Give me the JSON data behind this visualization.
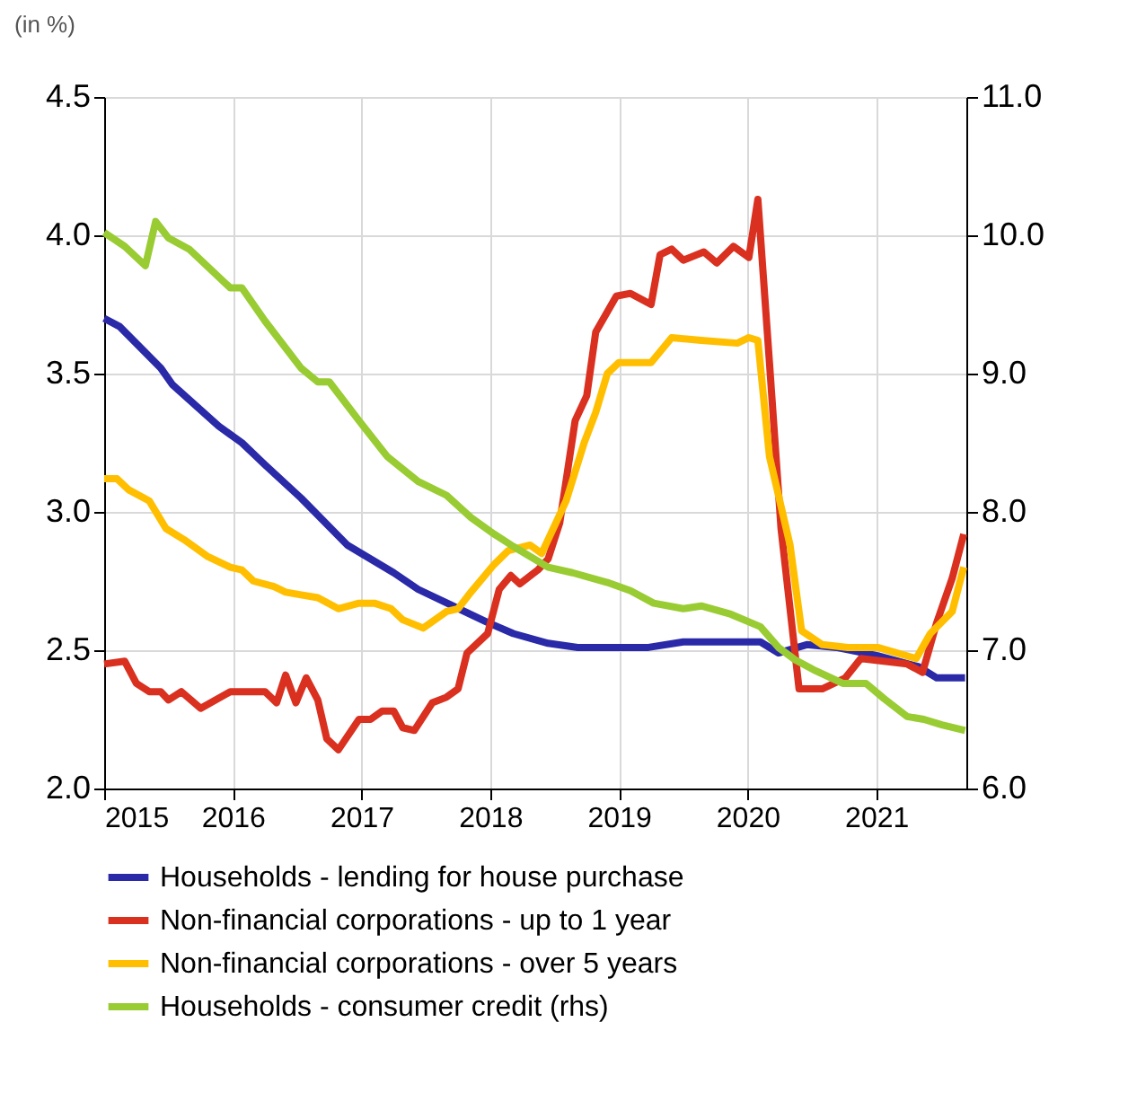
{
  "chart_data": {
    "type": "line",
    "title": "(in %)",
    "xlim": [
      2015,
      2021.7
    ],
    "xticks": [
      2015,
      2016,
      2017,
      2018,
      2019,
      2020,
      2021
    ],
    "ylim": [
      2.0,
      4.5
    ],
    "yticks": [
      {
        "value": 2.0,
        "label": "2.0"
      },
      {
        "value": 2.5,
        "label": "2.5"
      },
      {
        "value": 3.0,
        "label": "3.0"
      },
      {
        "value": 3.5,
        "label": "3.5"
      },
      {
        "value": 4.0,
        "label": "4.0"
      },
      {
        "value": 4.5,
        "label": "4.5"
      }
    ],
    "y2lim": [
      6.0,
      11.0
    ],
    "y2ticks": [
      {
        "value": 6.0,
        "label": "6.0"
      },
      {
        "value": 7.0,
        "label": "7.0"
      },
      {
        "value": 8.0,
        "label": "8.0"
      },
      {
        "value": 9.0,
        "label": "9.0"
      },
      {
        "value": 10.0,
        "label": "10.0"
      },
      {
        "value": 11.0,
        "label": "11.0"
      }
    ],
    "grid": true,
    "legend": "bottom",
    "line_style": "solid",
    "marker": "none",
    "series": [
      {
        "name": "Households - lending for house purchase",
        "color": "#2a2aa8",
        "x": [
          2015,
          2015.12,
          2015.44,
          2015.53,
          2015.89,
          2016.07,
          2016.25,
          2016.53,
          2016.89,
          2017.25,
          2017.44,
          2017.71,
          2017.98,
          2018.18,
          2018.45,
          2018.68,
          2019.23,
          2019.5,
          2020.1,
          2020.24,
          2020.46,
          2020.69,
          2021.01,
          2021.33,
          2021.47,
          2021.69
        ],
        "values": [
          3.7,
          3.67,
          3.52,
          3.46,
          3.31,
          3.25,
          3.17,
          3.05,
          2.88,
          2.78,
          2.72,
          2.66,
          2.6,
          2.56,
          2.525,
          2.51,
          2.51,
          2.53,
          2.53,
          2.49,
          2.52,
          2.51,
          2.48,
          2.44,
          2.4,
          2.4
        ]
      },
      {
        "name": "Non-financial corporations - up to 1 year",
        "color": "#d93020",
        "x": [
          2015,
          2015.16,
          2015.25,
          2015.35,
          2015.44,
          2015.5,
          2015.6,
          2015.75,
          2015.98,
          2016.25,
          2016.34,
          2016.41,
          2016.49,
          2016.57,
          2016.66,
          2016.73,
          2016.82,
          2016.98,
          2017.07,
          2017.16,
          2017.25,
          2017.32,
          2017.41,
          2017.55,
          2017.66,
          2017.75,
          2017.82,
          2017.98,
          2018.07,
          2018.16,
          2018.23,
          2018.37,
          2018.45,
          2018.54,
          2018.66,
          2018.75,
          2018.82,
          2018.98,
          2019.09,
          2019.25,
          2019.32,
          2019.41,
          2019.5,
          2019.66,
          2019.76,
          2019.89,
          2020.01,
          2020.08,
          2020.17,
          2020.26,
          2020.4,
          2020.58,
          2020.76,
          2020.88,
          2021.06,
          2021.24,
          2021.36,
          2021.47,
          2021.59,
          2021.68
        ],
        "values": [
          2.45,
          2.46,
          2.38,
          2.35,
          2.35,
          2.32,
          2.35,
          2.29,
          2.35,
          2.35,
          2.31,
          2.41,
          2.31,
          2.4,
          2.32,
          2.18,
          2.14,
          2.25,
          2.25,
          2.28,
          2.28,
          2.22,
          2.21,
          2.31,
          2.33,
          2.36,
          2.49,
          2.56,
          2.72,
          2.77,
          2.74,
          2.79,
          2.83,
          2.96,
          3.33,
          3.42,
          3.65,
          3.78,
          3.79,
          3.75,
          3.93,
          3.95,
          3.91,
          3.94,
          3.9,
          3.96,
          3.92,
          4.13,
          3.54,
          2.94,
          2.36,
          2.36,
          2.4,
          2.47,
          2.46,
          2.45,
          2.42,
          2.6,
          2.76,
          2.92
        ]
      },
      {
        "name": "Non-financial corporations - over 5 years",
        "color": "#ffbf00",
        "x": [
          2015,
          2015.1,
          2015.19,
          2015.35,
          2015.48,
          2015.62,
          2015.8,
          2015.98,
          2016.07,
          2016.16,
          2016.32,
          2016.41,
          2016.53,
          2016.66,
          2016.82,
          2016.98,
          2017.1,
          2017.23,
          2017.32,
          2017.48,
          2017.66,
          2017.75,
          2017.85,
          2018.03,
          2018.14,
          2018.31,
          2018.4,
          2018.59,
          2018.73,
          2018.82,
          2018.91,
          2019.0,
          2019.25,
          2019.41,
          2019.64,
          2019.92,
          2020.01,
          2020.08,
          2020.17,
          2020.33,
          2020.42,
          2020.58,
          2020.78,
          2021.01,
          2021.31,
          2021.42,
          2021.59,
          2021.68
        ],
        "values": [
          3.12,
          3.12,
          3.08,
          3.04,
          2.94,
          2.9,
          2.84,
          2.8,
          2.79,
          2.75,
          2.73,
          2.71,
          2.7,
          2.69,
          2.65,
          2.67,
          2.67,
          2.65,
          2.61,
          2.58,
          2.64,
          2.65,
          2.71,
          2.81,
          2.86,
          2.88,
          2.85,
          3.04,
          3.25,
          3.36,
          3.5,
          3.54,
          3.54,
          3.63,
          3.62,
          3.61,
          3.63,
          3.62,
          3.2,
          2.88,
          2.57,
          2.52,
          2.51,
          2.51,
          2.47,
          2.56,
          2.64,
          2.8
        ]
      },
      {
        "name": "Households - consumer credit (rhs)",
        "color": "#99cc33",
        "axis": "y2",
        "x": [
          2015,
          2015.16,
          2015.32,
          2015.4,
          2015.5,
          2015.66,
          2015.98,
          2016.07,
          2016.25,
          2016.53,
          2016.66,
          2016.75,
          2016.98,
          2017.2,
          2017.44,
          2017.66,
          2017.85,
          2018.03,
          2018.18,
          2018.45,
          2018.64,
          2018.91,
          2019.09,
          2019.27,
          2019.5,
          2019.64,
          2019.87,
          2020.1,
          2020.24,
          2020.37,
          2020.51,
          2020.74,
          2020.92,
          2021.06,
          2021.24,
          2021.37,
          2021.51,
          2021.69
        ],
        "values": [
          10.02,
          9.92,
          9.78,
          10.1,
          9.98,
          9.9,
          9.62,
          9.62,
          9.38,
          9.04,
          8.94,
          8.94,
          8.66,
          8.4,
          8.22,
          8.12,
          7.96,
          7.84,
          7.75,
          7.6,
          7.56,
          7.49,
          7.43,
          7.34,
          7.3,
          7.32,
          7.26,
          7.17,
          7.02,
          6.93,
          6.86,
          6.76,
          6.76,
          6.65,
          6.52,
          6.5,
          6.46,
          6.42
        ]
      }
    ]
  }
}
